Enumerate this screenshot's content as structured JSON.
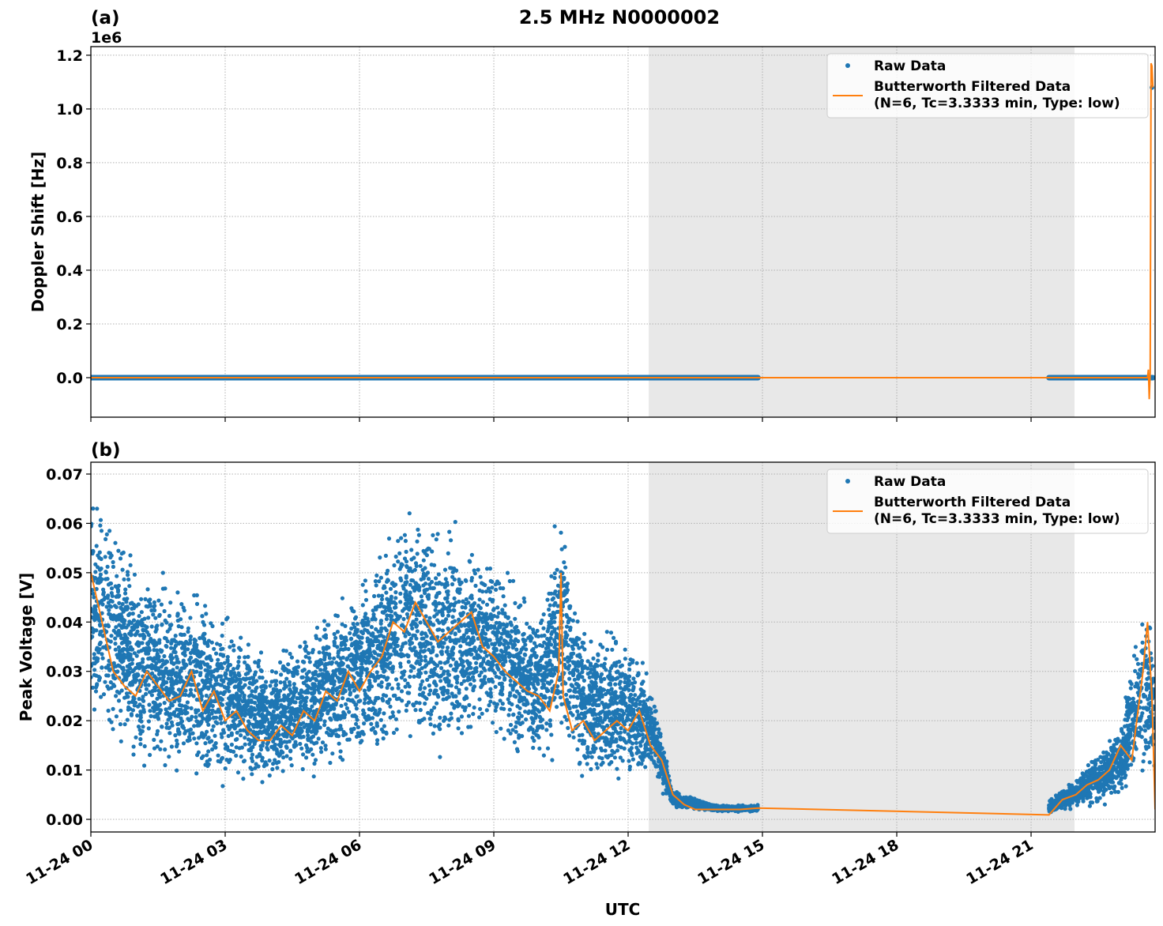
{
  "title": "2.5 MHz N0000002",
  "xlabel": "UTC",
  "x_ticks": [
    {
      "h": 0,
      "label": "11-24 00"
    },
    {
      "h": 3,
      "label": "11-24 03"
    },
    {
      "h": 6,
      "label": "11-24 06"
    },
    {
      "h": 9,
      "label": "11-24 09"
    },
    {
      "h": 12,
      "label": "11-24 12"
    },
    {
      "h": 15,
      "label": "11-24 15"
    },
    {
      "h": 18,
      "label": "11-24 18"
    },
    {
      "h": 21,
      "label": "11-24 21"
    }
  ],
  "colors": {
    "raw": "#1f77b4",
    "filtered": "#ff7f0e",
    "shade": "#e8e8e8"
  },
  "legend": {
    "raw": "Raw Data",
    "filtered_line1": "Butterworth Filtered Data",
    "filtered_line2": "(N=6, Tc=3.3333 min, Type: low)",
    "placement": "upper right"
  },
  "chart_data": [
    {
      "panel_label": "(a)",
      "type": "scatter+line",
      "ylabel": "Doppler Shift [Hz]",
      "offset_text": "1e6",
      "xlim_hours": [
        0,
        23.77
      ],
      "ylim": [
        -147000,
        1232000
      ],
      "y_ticks": [
        {
          "v": 0,
          "label": "0.0"
        },
        {
          "v": 200000,
          "label": "0.2"
        },
        {
          "v": 400000,
          "label": "0.4"
        },
        {
          "v": 600000,
          "label": "0.6"
        },
        {
          "v": 800000,
          "label": "0.8"
        },
        {
          "v": 1000000,
          "label": "1.0"
        },
        {
          "v": 1200000,
          "label": "1.2"
        }
      ],
      "grid": true,
      "shaded_interval_hours": [
        12.46,
        21.97
      ],
      "raw_segments_hours": [
        [
          0,
          14.9
        ],
        [
          21.4,
          23.72
        ]
      ],
      "raw_value": 0,
      "raw_outliers": [
        {
          "h": 23.7,
          "v": 1080000
        }
      ],
      "filtered": {
        "x": [
          0,
          14.9,
          21.4,
          23.6,
          23.62,
          23.64,
          23.66,
          23.68,
          23.7,
          23.72
        ],
        "y": [
          0,
          0,
          0,
          0,
          30000,
          -80000,
          20000,
          1170000,
          1160000,
          1080000
        ]
      }
    },
    {
      "panel_label": "(b)",
      "type": "scatter+line",
      "ylabel": "Peak Voltage [V]",
      "xlim_hours": [
        0,
        23.77
      ],
      "ylim": [
        -0.00256,
        0.0724
      ],
      "y_ticks": [
        {
          "v": 0,
          "label": "0.00"
        },
        {
          "v": 0.01,
          "label": "0.01"
        },
        {
          "v": 0.02,
          "label": "0.02"
        },
        {
          "v": 0.03,
          "label": "0.03"
        },
        {
          "v": 0.04,
          "label": "0.04"
        },
        {
          "v": 0.05,
          "label": "0.05"
        },
        {
          "v": 0.06,
          "label": "0.06"
        },
        {
          "v": 0.07,
          "label": "0.07"
        }
      ],
      "grid": true,
      "shaded_interval_hours": [
        12.46,
        21.97
      ],
      "raw_envelope": [
        {
          "h": 0,
          "lo": 0.02,
          "hi": 0.068
        },
        {
          "h": 1,
          "lo": 0.008,
          "hi": 0.055
        },
        {
          "h": 2,
          "lo": 0.006,
          "hi": 0.05
        },
        {
          "h": 3,
          "lo": 0.005,
          "hi": 0.045
        },
        {
          "h": 4,
          "lo": 0.005,
          "hi": 0.035
        },
        {
          "h": 5,
          "lo": 0.007,
          "hi": 0.042
        },
        {
          "h": 6,
          "lo": 0.01,
          "hi": 0.05
        },
        {
          "h": 7,
          "lo": 0.01,
          "hi": 0.068
        },
        {
          "h": 8,
          "lo": 0.01,
          "hi": 0.063
        },
        {
          "h": 9,
          "lo": 0.015,
          "hi": 0.055
        },
        {
          "h": 10,
          "lo": 0.008,
          "hi": 0.045
        },
        {
          "h": 10.5,
          "lo": 0.01,
          "hi": 0.069
        },
        {
          "h": 11,
          "lo": 0.005,
          "hi": 0.04
        },
        {
          "h": 12,
          "lo": 0.006,
          "hi": 0.04
        },
        {
          "h": 12.5,
          "lo": 0.008,
          "hi": 0.03
        },
        {
          "h": 13,
          "lo": 0.002,
          "hi": 0.006
        },
        {
          "h": 14,
          "lo": 0.0015,
          "hi": 0.003
        },
        {
          "h": 14.9,
          "lo": 0.0015,
          "hi": 0.003
        },
        null,
        {
          "h": 21.4,
          "lo": 0.001,
          "hi": 0.004
        },
        {
          "h": 22,
          "lo": 0.002,
          "hi": 0.009
        },
        {
          "h": 23,
          "lo": 0.003,
          "hi": 0.02
        },
        {
          "h": 23.5,
          "lo": 0.008,
          "hi": 0.046
        },
        {
          "h": 23.77,
          "lo": 0.001,
          "hi": 0.04
        }
      ],
      "filtered": {
        "x": [
          0,
          0.25,
          0.5,
          0.75,
          1,
          1.25,
          1.5,
          1.75,
          2,
          2.25,
          2.5,
          2.75,
          3,
          3.25,
          3.5,
          3.75,
          4,
          4.25,
          4.5,
          4.75,
          5,
          5.25,
          5.5,
          5.75,
          6,
          6.25,
          6.5,
          6.75,
          7,
          7.25,
          7.5,
          7.75,
          8,
          8.25,
          8.5,
          8.75,
          9,
          9.25,
          9.5,
          9.75,
          10,
          10.25,
          10.45,
          10.5,
          10.55,
          10.75,
          11,
          11.25,
          11.5,
          11.75,
          12,
          12.25,
          12.5,
          12.75,
          13,
          13.25,
          13.5,
          14,
          14.5,
          14.9,
          21.4,
          21.7,
          22,
          22.25,
          22.5,
          22.75,
          23,
          23.25,
          23.5,
          23.6,
          23.7,
          23.77
        ],
        "y": [
          0.05,
          0.04,
          0.03,
          0.027,
          0.025,
          0.03,
          0.027,
          0.024,
          0.025,
          0.03,
          0.022,
          0.026,
          0.02,
          0.022,
          0.018,
          0.016,
          0.016,
          0.019,
          0.017,
          0.022,
          0.02,
          0.026,
          0.024,
          0.03,
          0.026,
          0.03,
          0.033,
          0.04,
          0.038,
          0.044,
          0.04,
          0.036,
          0.038,
          0.04,
          0.042,
          0.035,
          0.033,
          0.03,
          0.028,
          0.026,
          0.025,
          0.022,
          0.03,
          0.05,
          0.025,
          0.018,
          0.02,
          0.016,
          0.018,
          0.02,
          0.018,
          0.022,
          0.015,
          0.012,
          0.005,
          0.003,
          0.002,
          0.002,
          0.002,
          0.0023,
          0.0009,
          0.004,
          0.005,
          0.007,
          0.008,
          0.01,
          0.015,
          0.012,
          0.03,
          0.04,
          0.025,
          0.002
        ]
      }
    }
  ]
}
